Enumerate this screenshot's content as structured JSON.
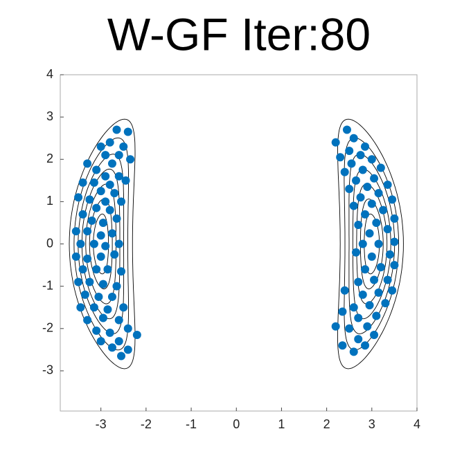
{
  "chart_data": {
    "type": "scatter",
    "title": "W-GF Iter:80",
    "xlim": [
      -3.9,
      4
    ],
    "ylim": [
      -3.95,
      4
    ],
    "xticks": [
      -3,
      -2,
      -1,
      0,
      1,
      2,
      3,
      4
    ],
    "yticks": [
      -3,
      -2,
      -1,
      0,
      1,
      2,
      3,
      4
    ],
    "color": "#0072bd",
    "x": [
      -2.65,
      -2.4,
      -2.8,
      -3.0,
      -2.5,
      -2.9,
      -2.6,
      -3.3,
      -2.75,
      -2.35,
      -3.1,
      -2.9,
      -2.6,
      -3.4,
      -3.15,
      -2.8,
      -2.45,
      -3.0,
      -2.7,
      -3.5,
      -3.25,
      -2.9,
      -2.55,
      -3.1,
      -2.8,
      -3.4,
      -3.2,
      -2.95,
      -2.65,
      -3.55,
      -3.3,
      -3.0,
      -2.75,
      -3.45,
      -3.15,
      -2.9,
      -2.6,
      -3.55,
      -3.3,
      -3.0,
      -2.7,
      -3.4,
      -3.1,
      -2.85,
      -2.55,
      -3.5,
      -3.25,
      -2.95,
      -2.65,
      -3.35,
      -3.05,
      -2.75,
      -3.45,
      -3.15,
      -2.85,
      -2.5,
      -3.3,
      -2.95,
      -2.6,
      -3.1,
      -2.8,
      -2.4,
      -3.0,
      -2.6,
      -2.2,
      -2.75,
      -2.4,
      -2.55,
      2.45,
      2.2,
      2.6,
      2.85,
      2.5,
      2.3,
      2.75,
      3.0,
      2.55,
      3.2,
      2.8,
      2.4,
      3.05,
      2.65,
      3.35,
      2.9,
      2.5,
      3.15,
      2.75,
      3.45,
      3.0,
      2.6,
      3.25,
      2.85,
      3.5,
      3.1,
      2.7,
      3.35,
      2.95,
      3.5,
      3.15,
      2.8,
      3.4,
      3.0,
      2.65,
      3.5,
      3.2,
      2.85,
      3.35,
      3.05,
      2.7,
      3.45,
      3.15,
      2.8,
      2.4,
      3.3,
      2.95,
      2.6,
      3.1,
      2.7,
      2.35,
      2.9,
      2.5,
      2.2,
      3.05,
      2.7,
      2.35,
      2.6,
      2.85
    ],
    "y": [
      2.7,
      2.65,
      2.4,
      2.3,
      2.3,
      2.1,
      2.1,
      1.9,
      1.9,
      2.0,
      1.75,
      1.6,
      1.6,
      1.45,
      1.45,
      1.4,
      1.5,
      1.25,
      1.2,
      1.1,
      1.05,
      1.0,
      1.0,
      0.85,
      0.8,
      0.7,
      0.55,
      0.5,
      0.6,
      0.3,
      0.3,
      0.2,
      0.25,
      0.0,
      0.0,
      -0.05,
      0.0,
      -0.3,
      -0.35,
      -0.3,
      -0.25,
      -0.6,
      -0.6,
      -0.6,
      -0.65,
      -0.9,
      -0.9,
      -0.95,
      -1.0,
      -1.2,
      -1.25,
      -1.25,
      -1.5,
      -1.5,
      -1.55,
      -1.5,
      -1.8,
      -1.75,
      -1.8,
      -2.05,
      -2.1,
      -2.0,
      -2.3,
      -2.3,
      -2.15,
      -2.45,
      -2.5,
      -2.65,
      2.7,
      2.4,
      2.5,
      2.3,
      2.2,
      2.05,
      2.1,
      2.0,
      1.9,
      1.8,
      1.75,
      1.7,
      1.55,
      1.5,
      1.4,
      1.35,
      1.3,
      1.2,
      1.1,
      1.05,
      0.95,
      0.9,
      0.8,
      0.7,
      0.6,
      0.5,
      0.45,
      0.35,
      0.25,
      0.05,
      0.0,
      0.0,
      -0.25,
      -0.3,
      -0.2,
      -0.5,
      -0.55,
      -0.6,
      -0.85,
      -0.85,
      -0.9,
      -1.1,
      -1.15,
      -1.2,
      -1.1,
      -1.4,
      -1.45,
      -1.5,
      -1.7,
      -1.75,
      -1.6,
      -1.95,
      -2.0,
      -1.95,
      -2.15,
      -2.25,
      -2.4,
      -2.55,
      -2.4
    ]
  }
}
